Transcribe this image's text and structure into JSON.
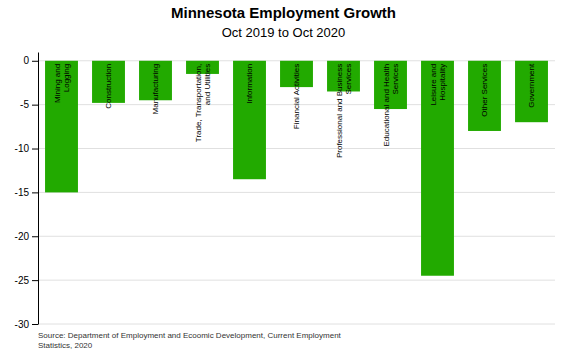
{
  "chart_data": {
    "type": "bar",
    "title": "Minnesota Employment Growth",
    "subtitle": "Oct 2019 to Oct 2020",
    "categories": [
      "Mining and\nLogging",
      "Construction",
      "Manufacturing",
      "Trade, Transportation,\nand Utilities",
      "Information",
      "Financial Activities",
      "Professional and Business\nServices",
      "Educational and Health\nServices",
      "Leisure and\nHospitality",
      "Other Services",
      "Government"
    ],
    "values": [
      -15.0,
      -4.8,
      -4.5,
      -1.5,
      -13.5,
      -3.0,
      -3.5,
      -5.5,
      -24.5,
      -8.0,
      -7.0
    ],
    "color": "#22AA00",
    "ylim": [
      -30,
      1
    ],
    "yticks": [
      0,
      -5,
      -10,
      -15,
      -20,
      -25,
      -30
    ],
    "grid": true,
    "annotation": "Source: Department of Employment and Ecoomic Development, Current Employment\nStatistics, 2020"
  }
}
